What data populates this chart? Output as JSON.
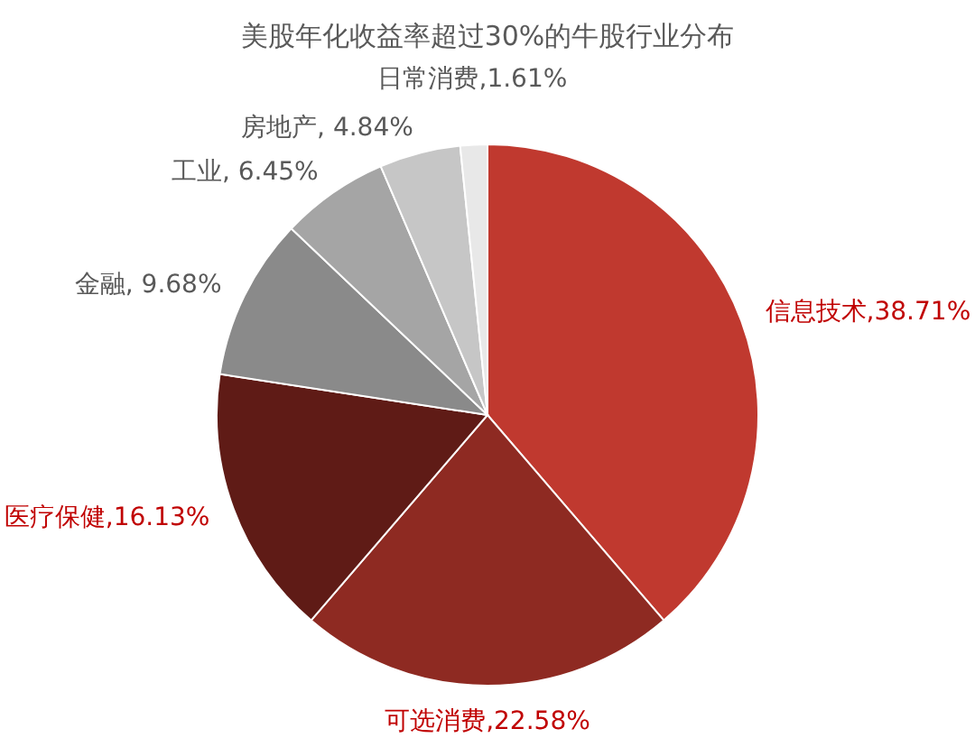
{
  "chart_data": {
    "type": "pie",
    "title": "美股年化收益率超过30%的牛股行业分布",
    "categories": [
      "信息技术",
      "可选消费",
      "医疗保健",
      "金融",
      "工业",
      "房地产",
      "日常消费"
    ],
    "values": [
      38.71,
      22.58,
      16.13,
      9.68,
      6.45,
      4.84,
      1.61
    ],
    "colors": [
      "#c0392f",
      "#8e2a22",
      "#5f1b16",
      "#8a8a8a",
      "#a5a5a5",
      "#c6c6c6",
      "#e8e8e8"
    ],
    "value_labels": [
      ",38.71%",
      ",22.58%",
      ",16.13%",
      ", 9.68%",
      ", 6.45%",
      ", 4.84%",
      ",1.61%"
    ],
    "legend": false
  }
}
